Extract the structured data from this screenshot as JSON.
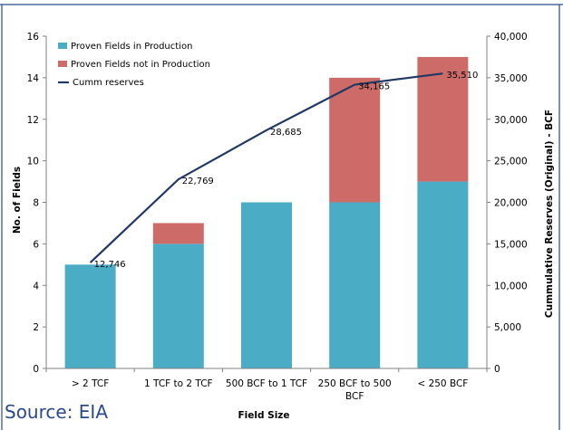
{
  "source": "Source: EIA",
  "colors": {
    "production": "#4bacc6",
    "not_production": "#cd6b68",
    "line": "#1f3864",
    "frame": "#2b4a8c"
  },
  "chart_data": {
    "type": "bar",
    "stacked": true,
    "categories": [
      "> 2 TCF",
      "1 TCF to 2 TCF",
      "500 BCF to 1 TCF",
      "250 BCF to 500 BCF",
      "< 250 BCF"
    ],
    "xlabel": "Field Size",
    "ylabel": "No. of Fields",
    "y2label": "Cummulative Reserves (Original) - BCF",
    "ylim": [
      0,
      16
    ],
    "yticks": [
      0,
      2,
      4,
      6,
      8,
      10,
      12,
      14,
      16
    ],
    "y2lim": [
      0,
      40000
    ],
    "y2ticks": [
      "0",
      "5,000",
      "10,000",
      "15,000",
      "20,000",
      "25,000",
      "30,000",
      "35,000",
      "40,000"
    ],
    "legend_position": "top-left",
    "series": [
      {
        "name": "Proven Fields in Production",
        "type": "bar",
        "values": [
          5,
          6,
          8,
          8,
          9
        ]
      },
      {
        "name": "Proven Fields not in Production",
        "type": "bar",
        "values": [
          0,
          1,
          0,
          6,
          6
        ]
      },
      {
        "name": "Cumm reserves",
        "type": "line",
        "axis": "secondary",
        "values": [
          12746,
          22769,
          28685,
          34165,
          35510
        ],
        "labels": [
          "12,746",
          "22,769",
          "28,685",
          "34,165",
          "35,510"
        ]
      }
    ]
  }
}
